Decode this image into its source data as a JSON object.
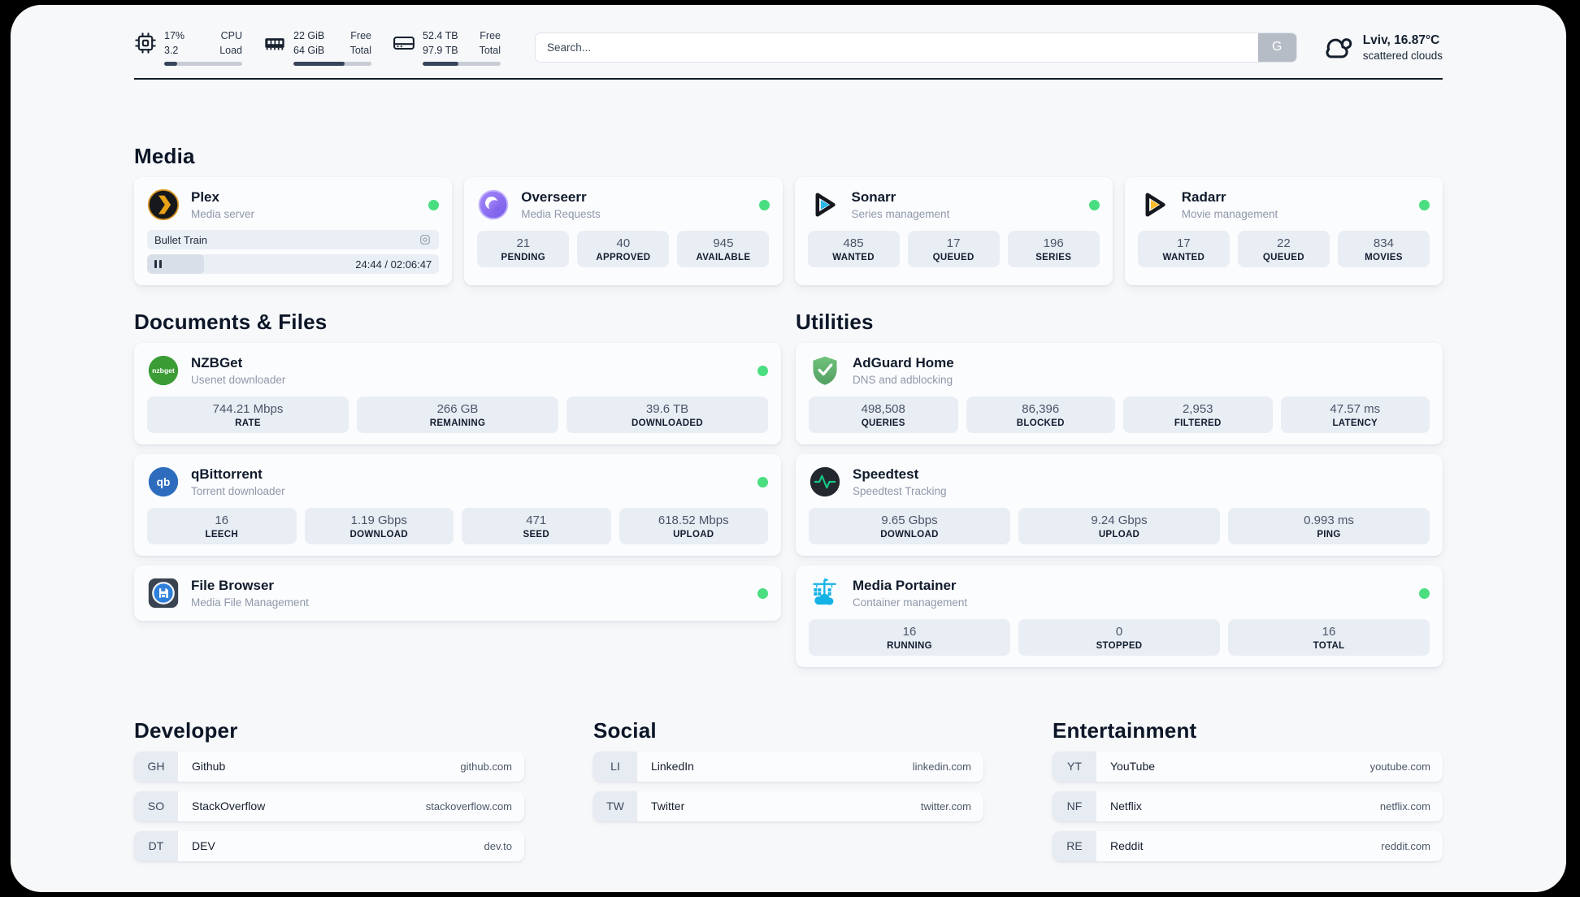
{
  "colors": {
    "status_online": "#4ade80",
    "accent_dark": "#141d2b"
  },
  "topbar": {
    "resources": [
      {
        "name": "cpu",
        "values": [
          "17%",
          "3.2"
        ],
        "labels": [
          "CPU",
          "Load"
        ],
        "used_percent": 17
      },
      {
        "name": "memory",
        "values": [
          "22 GiB",
          "64 GiB"
        ],
        "labels": [
          "Free",
          "Total"
        ],
        "used_percent": 66
      },
      {
        "name": "disk",
        "values": [
          "52.4 TB",
          "97.9 TB"
        ],
        "labels": [
          "Free",
          "Total"
        ],
        "used_percent": 46
      }
    ],
    "search": {
      "placeholder": "Search...",
      "button_label": "G"
    },
    "weather": {
      "title": "Lviv, 16.87°C",
      "subtitle": "scattered clouds"
    }
  },
  "sections": {
    "media": {
      "title": "Media",
      "cards": {
        "plex": {
          "title": "Plex",
          "subtitle": "Media server",
          "online": true,
          "player": {
            "now_playing": "Bullet Train",
            "time": "24:44 / 02:06:47",
            "progress_percent": 19.5
          }
        },
        "overseerr": {
          "title": "Overseerr",
          "subtitle": "Media Requests",
          "online": true,
          "stats": [
            {
              "value": "21",
              "label": "PENDING"
            },
            {
              "value": "40",
              "label": "APPROVED"
            },
            {
              "value": "945",
              "label": "AVAILABLE"
            }
          ]
        },
        "sonarr": {
          "title": "Sonarr",
          "subtitle": "Series management",
          "online": true,
          "stats": [
            {
              "value": "485",
              "label": "WANTED"
            },
            {
              "value": "17",
              "label": "QUEUED"
            },
            {
              "value": "196",
              "label": "SERIES"
            }
          ]
        },
        "radarr": {
          "title": "Radarr",
          "subtitle": "Movie management",
          "online": true,
          "stats": [
            {
              "value": "17",
              "label": "WANTED"
            },
            {
              "value": "22",
              "label": "QUEUED"
            },
            {
              "value": "834",
              "label": "MOVIES"
            }
          ]
        }
      }
    },
    "documents": {
      "title": "Documents & Files",
      "cards": {
        "nzbget": {
          "title": "NZBGet",
          "subtitle": "Usenet downloader",
          "online": true,
          "icon_text": "nzbget",
          "stats": [
            {
              "value": "744.21 Mbps",
              "label": "RATE"
            },
            {
              "value": "266 GB",
              "label": "REMAINING"
            },
            {
              "value": "39.6 TB",
              "label": "DOWNLOADED"
            }
          ]
        },
        "qbittorrent": {
          "title": "qBittorrent",
          "subtitle": "Torrent downloader",
          "online": true,
          "icon_text": "qb",
          "stats": [
            {
              "value": "16",
              "label": "LEECH"
            },
            {
              "value": "1.19 Gbps",
              "label": "DOWNLOAD"
            },
            {
              "value": "471",
              "label": "SEED"
            },
            {
              "value": "618.52 Mbps",
              "label": "UPLOAD"
            }
          ]
        },
        "filebrowser": {
          "title": "File Browser",
          "subtitle": "Media File Management",
          "online": true
        }
      }
    },
    "utilities": {
      "title": "Utilities",
      "cards": {
        "adguard": {
          "title": "AdGuard Home",
          "subtitle": "DNS and adblocking",
          "stats": [
            {
              "value": "498,508",
              "label": "QUERIES"
            },
            {
              "value": "86,396",
              "label": "BLOCKED"
            },
            {
              "value": "2,953",
              "label": "FILTERED"
            },
            {
              "value": "47.57 ms",
              "label": "LATENCY"
            }
          ]
        },
        "speedtest": {
          "title": "Speedtest",
          "subtitle": "Speedtest Tracking",
          "stats": [
            {
              "value": "9.65 Gbps",
              "label": "DOWNLOAD"
            },
            {
              "value": "9.24 Gbps",
              "label": "UPLOAD"
            },
            {
              "value": "0.993 ms",
              "label": "PING"
            }
          ]
        },
        "portainer": {
          "title": "Media Portainer",
          "subtitle": "Container management",
          "online": true,
          "stats": [
            {
              "value": "16",
              "label": "RUNNING"
            },
            {
              "value": "0",
              "label": "STOPPED"
            },
            {
              "value": "16",
              "label": "TOTAL"
            }
          ]
        }
      }
    },
    "bookmarks": {
      "developer": {
        "title": "Developer",
        "items": [
          {
            "abbr": "GH",
            "name": "Github",
            "url": "github.com"
          },
          {
            "abbr": "SO",
            "name": "StackOverflow",
            "url": "stackoverflow.com"
          },
          {
            "abbr": "DT",
            "name": "DEV",
            "url": "dev.to"
          }
        ]
      },
      "social": {
        "title": "Social",
        "items": [
          {
            "abbr": "LI",
            "name": "LinkedIn",
            "url": "linkedin.com"
          },
          {
            "abbr": "TW",
            "name": "Twitter",
            "url": "twitter.com"
          }
        ]
      },
      "entertainment": {
        "title": "Entertainment",
        "items": [
          {
            "abbr": "YT",
            "name": "YouTube",
            "url": "youtube.com"
          },
          {
            "abbr": "NF",
            "name": "Netflix",
            "url": "netflix.com"
          },
          {
            "abbr": "RE",
            "name": "Reddit",
            "url": "reddit.com"
          }
        ]
      }
    }
  }
}
